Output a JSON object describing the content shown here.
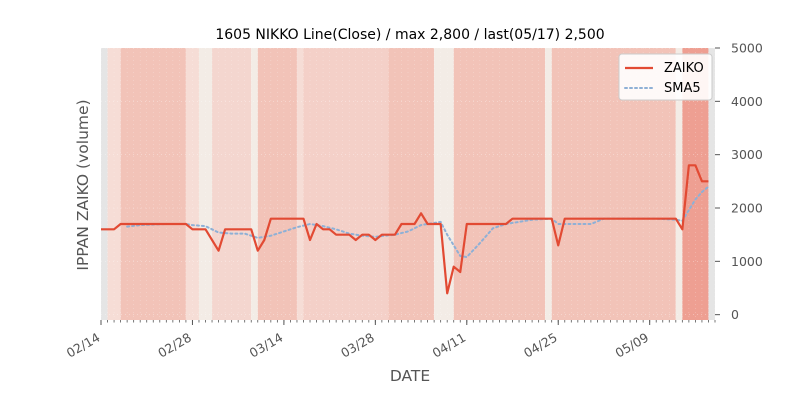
{
  "chart_data": {
    "type": "line",
    "title": "1605 NIKKO Line(Close) / max 2,800 / last(05/17) 2,500",
    "xlabel": "DATE",
    "ylabel": "IPPAN ZAIKO (volume)",
    "ylim": [
      -100,
      5000
    ],
    "yticks": [
      0,
      1000,
      2000,
      3000,
      4000,
      5000
    ],
    "ytick_labels": [
      "0",
      "1000",
      "2000",
      "3000",
      "4000",
      "5000"
    ],
    "y_axis_side": "right",
    "xlim": [
      "2025-02-14",
      "2025-05-19"
    ],
    "xticks": [
      {
        "date": "2025-02-14",
        "label": "02/14"
      },
      {
        "date": "2025-02-28",
        "label": "02/28"
      },
      {
        "date": "2025-03-14",
        "label": "03/14"
      },
      {
        "date": "2025-03-28",
        "label": "03/28"
      },
      {
        "date": "2025-04-11",
        "label": "04/11"
      },
      {
        "date": "2025-04-25",
        "label": "04/25"
      },
      {
        "date": "2025-05-09",
        "label": "05/09"
      }
    ],
    "grid": true,
    "legend_position": "top-right",
    "series": [
      {
        "name": "ZAIKO",
        "color": "#e24a33",
        "style": "solid",
        "points": [
          [
            "2025-02-14",
            1600
          ],
          [
            "2025-02-16",
            1600
          ],
          [
            "2025-02-17",
            1700
          ],
          [
            "2025-02-20",
            1700
          ],
          [
            "2025-02-22",
            1700
          ],
          [
            "2025-02-25",
            1700
          ],
          [
            "2025-02-27",
            1700
          ],
          [
            "2025-02-28",
            1600
          ],
          [
            "2025-03-02",
            1600
          ],
          [
            "2025-03-04",
            1200
          ],
          [
            "2025-03-05",
            1600
          ],
          [
            "2025-03-07",
            1600
          ],
          [
            "2025-03-09",
            1600
          ],
          [
            "2025-03-10",
            1200
          ],
          [
            "2025-03-11",
            1400
          ],
          [
            "2025-03-12",
            1800
          ],
          [
            "2025-03-14",
            1800
          ],
          [
            "2025-03-17",
            1800
          ],
          [
            "2025-03-18",
            1400
          ],
          [
            "2025-03-19",
            1700
          ],
          [
            "2025-03-20",
            1600
          ],
          [
            "2025-03-21",
            1600
          ],
          [
            "2025-03-22",
            1500
          ],
          [
            "2025-03-24",
            1500
          ],
          [
            "2025-03-25",
            1400
          ],
          [
            "2025-03-26",
            1500
          ],
          [
            "2025-03-27",
            1500
          ],
          [
            "2025-03-28",
            1400
          ],
          [
            "2025-03-29",
            1500
          ],
          [
            "2025-03-31",
            1500
          ],
          [
            "2025-04-01",
            1700
          ],
          [
            "2025-04-03",
            1700
          ],
          [
            "2025-04-04",
            1900
          ],
          [
            "2025-04-05",
            1700
          ],
          [
            "2025-04-07",
            1700
          ],
          [
            "2025-04-08",
            400
          ],
          [
            "2025-04-09",
            900
          ],
          [
            "2025-04-10",
            800
          ],
          [
            "2025-04-11",
            1700
          ],
          [
            "2025-04-14",
            1700
          ],
          [
            "2025-04-17",
            1700
          ],
          [
            "2025-04-18",
            1800
          ],
          [
            "2025-04-21",
            1800
          ],
          [
            "2025-04-24",
            1800
          ],
          [
            "2025-04-25",
            1300
          ],
          [
            "2025-04-26",
            1800
          ],
          [
            "2025-04-30",
            1800
          ],
          [
            "2025-05-05",
            1800
          ],
          [
            "2025-05-10",
            1800
          ],
          [
            "2025-05-13",
            1800
          ],
          [
            "2025-05-14",
            1600
          ],
          [
            "2025-05-15",
            2800
          ],
          [
            "2025-05-16",
            2800
          ],
          [
            "2025-05-17",
            2500
          ],
          [
            "2025-05-18",
            2500
          ]
        ]
      },
      {
        "name": "SMA5",
        "color": "#8eb0d6",
        "style": "dotted",
        "points": [
          [
            "2025-02-18",
            1650
          ],
          [
            "2025-02-20",
            1680
          ],
          [
            "2025-02-24",
            1700
          ],
          [
            "2025-02-27",
            1700
          ],
          [
            "2025-02-28",
            1680
          ],
          [
            "2025-03-02",
            1660
          ],
          [
            "2025-03-04",
            1540
          ],
          [
            "2025-03-06",
            1520
          ],
          [
            "2025-03-08",
            1520
          ],
          [
            "2025-03-10",
            1440
          ],
          [
            "2025-03-12",
            1480
          ],
          [
            "2025-03-14",
            1560
          ],
          [
            "2025-03-16",
            1640
          ],
          [
            "2025-03-18",
            1700
          ],
          [
            "2025-03-20",
            1660
          ],
          [
            "2025-03-22",
            1600
          ],
          [
            "2025-03-24",
            1520
          ],
          [
            "2025-03-26",
            1480
          ],
          [
            "2025-03-28",
            1460
          ],
          [
            "2025-03-31",
            1500
          ],
          [
            "2025-04-02",
            1560
          ],
          [
            "2025-04-04",
            1680
          ],
          [
            "2025-04-07",
            1740
          ],
          [
            "2025-04-08",
            1500
          ],
          [
            "2025-04-10",
            1100
          ],
          [
            "2025-04-11",
            1080
          ],
          [
            "2025-04-13",
            1340
          ],
          [
            "2025-04-15",
            1620
          ],
          [
            "2025-04-17",
            1700
          ],
          [
            "2025-04-19",
            1740
          ],
          [
            "2025-04-21",
            1780
          ],
          [
            "2025-04-24",
            1800
          ],
          [
            "2025-04-25",
            1700
          ],
          [
            "2025-04-27",
            1700
          ],
          [
            "2025-04-30",
            1700
          ],
          [
            "2025-05-02",
            1800
          ],
          [
            "2025-05-06",
            1800
          ],
          [
            "2025-05-10",
            1800
          ],
          [
            "2025-05-13",
            1780
          ],
          [
            "2025-05-14",
            1760
          ],
          [
            "2025-05-15",
            1960
          ],
          [
            "2025-05-16",
            2160
          ],
          [
            "2025-05-17",
            2300
          ],
          [
            "2025-05-18",
            2400
          ]
        ]
      }
    ],
    "background_bands": {
      "description": "daily shaded columns",
      "bands": [
        {
          "start": "2025-02-14",
          "end": "2025-02-15",
          "color": "#e5e5e5"
        },
        {
          "start": "2025-02-15",
          "end": "2025-02-17",
          "color": "#f6ddd6"
        },
        {
          "start": "2025-02-17",
          "end": "2025-02-27",
          "color": "#f2c3b8"
        },
        {
          "start": "2025-02-27",
          "end": "2025-03-01",
          "color": "#f6ddd6"
        },
        {
          "start": "2025-03-01",
          "end": "2025-03-03",
          "color": "#f3ece6"
        },
        {
          "start": "2025-03-03",
          "end": "2025-03-09",
          "color": "#f4d6cf"
        },
        {
          "start": "2025-03-09",
          "end": "2025-03-10",
          "color": "#f3ece6"
        },
        {
          "start": "2025-03-10",
          "end": "2025-03-16",
          "color": "#f2c3b8"
        },
        {
          "start": "2025-03-16",
          "end": "2025-03-17",
          "color": "#f6ddd6"
        },
        {
          "start": "2025-03-17",
          "end": "2025-03-30",
          "color": "#f4d0c8"
        },
        {
          "start": "2025-03-30",
          "end": "2025-04-06",
          "color": "#f2c3b8"
        },
        {
          "start": "2025-04-06",
          "end": "2025-04-09",
          "color": "#f3ece6"
        },
        {
          "start": "2025-04-09",
          "end": "2025-04-23",
          "color": "#f2c3b8"
        },
        {
          "start": "2025-04-23",
          "end": "2025-04-24",
          "color": "#f3ece6"
        },
        {
          "start": "2025-04-24",
          "end": "2025-05-13",
          "color": "#f2c3b8"
        },
        {
          "start": "2025-05-13",
          "end": "2025-05-14",
          "color": "#f3ece6"
        },
        {
          "start": "2025-05-14",
          "end": "2025-05-18",
          "color": "#ee9f92"
        },
        {
          "start": "2025-05-18",
          "end": "2025-05-19",
          "color": "#e5e5e5"
        }
      ]
    }
  }
}
